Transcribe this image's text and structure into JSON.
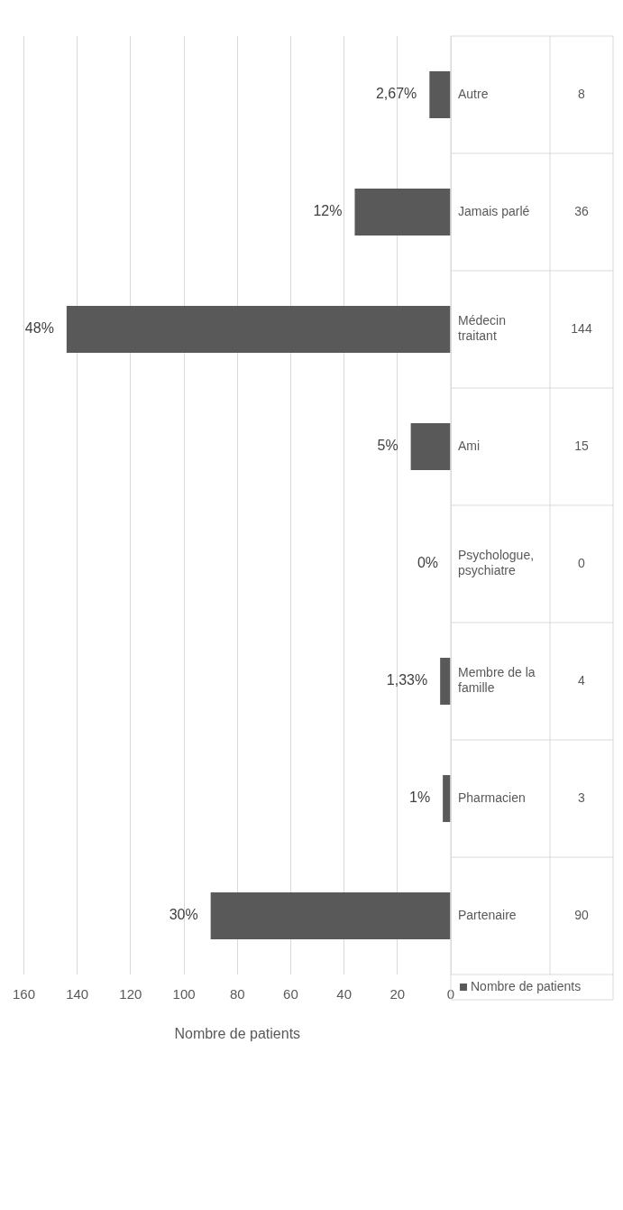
{
  "chart_data": {
    "type": "bar",
    "orientation": "horizontal",
    "xlabel": "Nombre de patients",
    "categories": [
      "Autre",
      "Jamais parlé",
      "Médecin traitant",
      "Ami",
      "Psychologue, psychiatre",
      "Membre de la famille",
      "Pharmacien",
      "Partenaire"
    ],
    "series": [
      {
        "name": "Nombre de patients",
        "color": "#595959",
        "values": [
          8,
          36,
          144,
          15,
          0,
          4,
          3,
          90
        ]
      }
    ],
    "annotations": [
      {
        "text": "2,67%",
        "x": 8,
        "y": "Autre"
      },
      {
        "text": "12%",
        "x": 36,
        "y": "Jamais parlé"
      },
      {
        "text": "48%",
        "x": 144,
        "y": "Médecin traitant"
      },
      {
        "text": "5%",
        "x": 15,
        "y": "Ami"
      },
      {
        "text": "0%",
        "x": 0,
        "y": "Psychologue, psychiatre"
      },
      {
        "text": "1,33%",
        "x": 4,
        "y": "Membre de la famille"
      },
      {
        "text": "1%",
        "x": 3,
        "y": "Pharmacien"
      },
      {
        "text": "30%",
        "x": 90,
        "y": "Partenaire"
      }
    ],
    "xlim": [
      160,
      0
    ],
    "xticks": [
      160,
      140,
      120,
      100,
      80,
      60,
      40,
      20,
      0
    ],
    "grid": "x",
    "legend": "bottom right",
    "data_labels": true
  }
}
